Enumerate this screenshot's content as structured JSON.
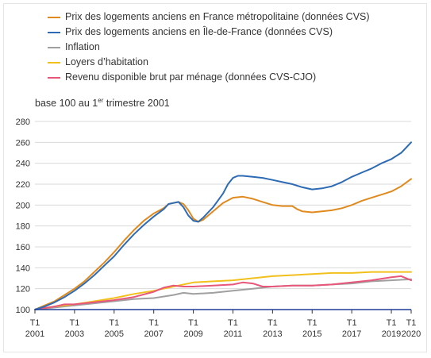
{
  "chart_data": {
    "type": "line",
    "subtitle_prefix": "base 100 au 1",
    "subtitle_sup": "er",
    "subtitle_suffix": " trimestre 2001",
    "ylim": [
      100,
      280
    ],
    "yticks": [
      100,
      120,
      140,
      160,
      180,
      200,
      220,
      240,
      260,
      280
    ],
    "x_range": [
      2001.0,
      2020.0
    ],
    "xticks": [
      {
        "x": 2001,
        "q": "T1",
        "year": "2001"
      },
      {
        "x": 2003,
        "q": "T1",
        "year": "2003"
      },
      {
        "x": 2005,
        "q": "T1",
        "year": "2005"
      },
      {
        "x": 2007,
        "q": "T1",
        "year": "2007"
      },
      {
        "x": 2009,
        "q": "T1",
        "year": "2009"
      },
      {
        "x": 2011,
        "q": "T1",
        "year": "2011"
      },
      {
        "x": 2013,
        "q": "T1",
        "year": "2013"
      },
      {
        "x": 2015,
        "q": "T1",
        "year": "2015"
      },
      {
        "x": 2017,
        "q": "T1",
        "year": "2017"
      },
      {
        "x": 2019,
        "q": "T1",
        "year": "2019"
      },
      {
        "x": 2020,
        "q": "T1",
        "year": "2020"
      }
    ],
    "series": [
      {
        "name": "Prix des logements anciens en France métropolitaine (données CVS)",
        "color": "#e08a1e",
        "points": [
          [
            2001.0,
            100
          ],
          [
            2001.5,
            104
          ],
          [
            2002.0,
            108
          ],
          [
            2002.5,
            114
          ],
          [
            2003.0,
            120
          ],
          [
            2003.5,
            127
          ],
          [
            2004.0,
            136
          ],
          [
            2004.5,
            145
          ],
          [
            2005.0,
            155
          ],
          [
            2005.5,
            166
          ],
          [
            2006.0,
            176
          ],
          [
            2006.5,
            185
          ],
          [
            2007.0,
            192
          ],
          [
            2007.5,
            197
          ],
          [
            2007.75,
            201
          ],
          [
            2008.0,
            202
          ],
          [
            2008.25,
            203
          ],
          [
            2008.5,
            201
          ],
          [
            2008.75,
            195
          ],
          [
            2009.0,
            187
          ],
          [
            2009.25,
            184
          ],
          [
            2009.5,
            186
          ],
          [
            2010.0,
            194
          ],
          [
            2010.5,
            202
          ],
          [
            2011.0,
            207
          ],
          [
            2011.5,
            208
          ],
          [
            2012.0,
            206
          ],
          [
            2012.5,
            203
          ],
          [
            2013.0,
            200
          ],
          [
            2013.5,
            199
          ],
          [
            2014.0,
            199
          ],
          [
            2014.25,
            196
          ],
          [
            2014.5,
            194
          ],
          [
            2015.0,
            193
          ],
          [
            2015.5,
            194
          ],
          [
            2016.0,
            195
          ],
          [
            2016.5,
            197
          ],
          [
            2017.0,
            200
          ],
          [
            2017.5,
            204
          ],
          [
            2018.0,
            207
          ],
          [
            2018.5,
            210
          ],
          [
            2019.0,
            213
          ],
          [
            2019.5,
            218
          ],
          [
            2020.0,
            225
          ]
        ]
      },
      {
        "name": "Prix des logements anciens en Île-de-France (données CVS)",
        "color": "#2e6bb5",
        "points": [
          [
            2001.0,
            100
          ],
          [
            2001.5,
            103
          ],
          [
            2002.0,
            107
          ],
          [
            2002.5,
            112
          ],
          [
            2003.0,
            118
          ],
          [
            2003.5,
            125
          ],
          [
            2004.0,
            133
          ],
          [
            2004.5,
            142
          ],
          [
            2005.0,
            151
          ],
          [
            2005.5,
            162
          ],
          [
            2006.0,
            172
          ],
          [
            2006.5,
            181
          ],
          [
            2007.0,
            189
          ],
          [
            2007.5,
            196
          ],
          [
            2007.75,
            201
          ],
          [
            2008.0,
            202
          ],
          [
            2008.25,
            203
          ],
          [
            2008.5,
            198
          ],
          [
            2008.75,
            190
          ],
          [
            2009.0,
            185
          ],
          [
            2009.25,
            184
          ],
          [
            2009.5,
            188
          ],
          [
            2010.0,
            198
          ],
          [
            2010.5,
            211
          ],
          [
            2010.75,
            220
          ],
          [
            2011.0,
            226
          ],
          [
            2011.25,
            228
          ],
          [
            2011.5,
            228
          ],
          [
            2012.0,
            227
          ],
          [
            2012.5,
            226
          ],
          [
            2013.0,
            224
          ],
          [
            2013.5,
            222
          ],
          [
            2014.0,
            220
          ],
          [
            2014.5,
            217
          ],
          [
            2015.0,
            215
          ],
          [
            2015.5,
            216
          ],
          [
            2016.0,
            218
          ],
          [
            2016.5,
            222
          ],
          [
            2017.0,
            227
          ],
          [
            2017.5,
            231
          ],
          [
            2018.0,
            235
          ],
          [
            2018.5,
            240
          ],
          [
            2019.0,
            244
          ],
          [
            2019.5,
            250
          ],
          [
            2020.0,
            260
          ]
        ]
      },
      {
        "name": "Inflation",
        "color": "#a0a0a0",
        "points": [
          [
            2001.0,
            100
          ],
          [
            2002.0,
            102
          ],
          [
            2003.0,
            104
          ],
          [
            2004.0,
            106
          ],
          [
            2005.0,
            108
          ],
          [
            2006.0,
            110
          ],
          [
            2007.0,
            111
          ],
          [
            2008.0,
            114
          ],
          [
            2008.5,
            116
          ],
          [
            2009.0,
            115
          ],
          [
            2010.0,
            116
          ],
          [
            2011.0,
            118
          ],
          [
            2012.0,
            120
          ],
          [
            2013.0,
            122
          ],
          [
            2014.0,
            123
          ],
          [
            2015.0,
            123
          ],
          [
            2016.0,
            124
          ],
          [
            2017.0,
            125
          ],
          [
            2018.0,
            127
          ],
          [
            2019.0,
            128
          ],
          [
            2020.0,
            129
          ]
        ]
      },
      {
        "name": "Loyers d’habitation",
        "color": "#f2c01c",
        "points": [
          [
            2001.0,
            100
          ],
          [
            2002.0,
            103
          ],
          [
            2003.0,
            105
          ],
          [
            2004.0,
            108
          ],
          [
            2005.0,
            111
          ],
          [
            2006.0,
            115
          ],
          [
            2007.0,
            118
          ],
          [
            2008.0,
            122
          ],
          [
            2009.0,
            126
          ],
          [
            2010.0,
            127
          ],
          [
            2011.0,
            128
          ],
          [
            2012.0,
            130
          ],
          [
            2013.0,
            132
          ],
          [
            2014.0,
            133
          ],
          [
            2015.0,
            134
          ],
          [
            2016.0,
            135
          ],
          [
            2017.0,
            135
          ],
          [
            2018.0,
            136
          ],
          [
            2019.0,
            136
          ],
          [
            2020.0,
            136
          ]
        ]
      },
      {
        "name": "Revenu disponible brut par ménage (données CVS-CJO)",
        "color": "#e8567a",
        "points": [
          [
            2001.0,
            100
          ],
          [
            2002.0,
            103
          ],
          [
            2002.5,
            105
          ],
          [
            2003.0,
            105
          ],
          [
            2004.0,
            107
          ],
          [
            2005.0,
            109
          ],
          [
            2006.0,
            112
          ],
          [
            2007.0,
            117
          ],
          [
            2007.5,
            121
          ],
          [
            2008.0,
            123
          ],
          [
            2008.5,
            122
          ],
          [
            2009.0,
            122
          ],
          [
            2010.0,
            123
          ],
          [
            2011.0,
            124
          ],
          [
            2011.5,
            126
          ],
          [
            2012.0,
            125
          ],
          [
            2012.5,
            122
          ],
          [
            2013.0,
            122
          ],
          [
            2014.0,
            123
          ],
          [
            2015.0,
            123
          ],
          [
            2016.0,
            124
          ],
          [
            2017.0,
            126
          ],
          [
            2018.0,
            128
          ],
          [
            2019.0,
            131
          ],
          [
            2019.5,
            132
          ],
          [
            2020.0,
            128
          ]
        ]
      }
    ]
  }
}
